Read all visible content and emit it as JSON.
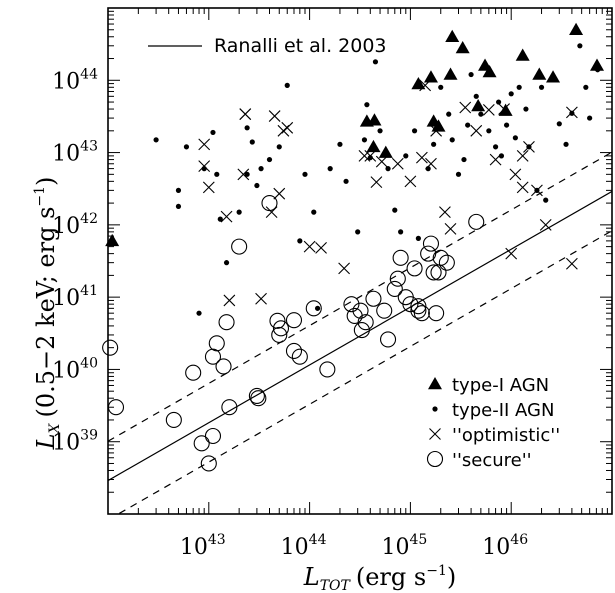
{
  "chart_data": {
    "type": "scatter",
    "x_scale": "log",
    "y_scale": "log",
    "xlabel": "L_TOT (erg s^-1)",
    "ylabel": "L_X (0.5-2 keV; erg s^-1)",
    "xlim": [
      1e+42,
      1e+47
    ],
    "ylim": [
      1e+38,
      1e+45
    ],
    "x_ticks": [
      {
        "value": 1e+43,
        "base": "10",
        "exp": "43"
      },
      {
        "value": 1e+44,
        "base": "10",
        "exp": "44"
      },
      {
        "value": 1e+45,
        "base": "10",
        "exp": "45"
      },
      {
        "value": 1e+46,
        "base": "10",
        "exp": "46"
      }
    ],
    "y_ticks": [
      {
        "value": 1e+39,
        "base": "10",
        "exp": "39"
      },
      {
        "value": 1e+40,
        "base": "10",
        "exp": "40"
      },
      {
        "value": 1e+41,
        "base": "10",
        "exp": "41"
      },
      {
        "value": 1e+42,
        "base": "10",
        "exp": "42"
      },
      {
        "value": 1e+43,
        "base": "10",
        "exp": "43"
      },
      {
        "value": 1e+44,
        "base": "10",
        "exp": "44"
      }
    ],
    "relation": {
      "name": "Ranalli et al. 2003",
      "slope": 0.8,
      "intercept_at_1e42": 2.9e+38,
      "band_factor": 3.5
    },
    "series": [
      {
        "name": "type-I AGN",
        "marker": "filled-triangle",
        "points": [
          [
            1.1e+42,
            6e+41
          ],
          [
            2.6e+45,
            4e+44
          ],
          [
            3.3e+45,
            2.8e+44
          ],
          [
            4.4e+46,
            5e+44
          ],
          [
            1.3e+46,
            2.2e+44
          ],
          [
            5.5e+45,
            1.6e+44
          ],
          [
            1.2e+45,
            8.9e+43
          ],
          [
            1.6e+45,
            1.1e+44
          ],
          [
            2.5e+45,
            1.2e+44
          ],
          [
            6.1e+45,
            1.3e+44
          ],
          [
            1.9e+46,
            1.2e+44
          ],
          [
            7.1e+46,
            1.6e+44
          ],
          [
            2.6e+46,
            1.1e+44
          ],
          [
            3.7e+44,
            2.7e+43
          ],
          [
            4.4e+44,
            2.8e+43
          ],
          [
            1.7e+45,
            2.7e+43
          ],
          [
            1.9e+45,
            2.3e+43
          ],
          [
            4.7e+45,
            4.4e+43
          ],
          [
            8.8e+45,
            3.8e+43
          ],
          [
            4.3e+44,
            1.2e+43
          ],
          [
            5.7e+44,
            1e+43
          ]
        ]
      },
      {
        "name": "type-II AGN",
        "marker": "dot",
        "points": [
          [
            3e+42,
            1.5e+43
          ],
          [
            5e+42,
            3e+42
          ],
          [
            6e+42,
            1.2e+43
          ],
          [
            5e+42,
            1.8e+42
          ],
          [
            8e+42,
            6e+40
          ],
          [
            9e+42,
            6e+42
          ],
          [
            1.1e+43,
            1.9e+43
          ],
          [
            1.2e+43,
            5e+42
          ],
          [
            1.3e+43,
            1.2e+42
          ],
          [
            1.5e+43,
            3e+41
          ],
          [
            2e+43,
            1.5e+42
          ],
          [
            2.4e+43,
            2.2e+43
          ],
          [
            2.7e+43,
            1.4e+43
          ],
          [
            3e+43,
            3.5e+42
          ],
          [
            3.3e+43,
            6e+42
          ],
          [
            4e+43,
            8e+42
          ],
          [
            5e+43,
            1.2e+43
          ],
          [
            6e+43,
            8.5e+43
          ],
          [
            8e+43,
            6e+41
          ],
          [
            9e+43,
            5e+42
          ],
          [
            1.1e+44,
            1.5e+42
          ],
          [
            1.6e+44,
            6e+42
          ],
          [
            2e+44,
            1.3e+43
          ],
          [
            2.3e+44,
            4e+42
          ],
          [
            3e+44,
            8e+41
          ],
          [
            3.5e+44,
            1.5e+43
          ],
          [
            3.7e+44,
            4.6e+43
          ],
          [
            4e+44,
            8.5e+42
          ],
          [
            4.5e+44,
            1.8e+44
          ],
          [
            5e+44,
            2e+43
          ],
          [
            6e+44,
            6e+42
          ],
          [
            7e+44,
            1.6e+42
          ],
          [
            8e+44,
            8e+41
          ],
          [
            9e+44,
            9e+42
          ],
          [
            1.1e+45,
            2e+43
          ],
          [
            1.2e+45,
            6.5e+41
          ],
          [
            1.5e+45,
            6e+42
          ],
          [
            1.7e+45,
            1.3e+43
          ],
          [
            2e+45,
            8e+43
          ],
          [
            2.4e+45,
            3.4e+43
          ],
          [
            2.6e+45,
            1.5e+43
          ],
          [
            3e+45,
            5e+42
          ],
          [
            3.4e+45,
            8e+42
          ],
          [
            3.7e+45,
            2.4e+43
          ],
          [
            4e+45,
            1.2e+44
          ],
          [
            4.5e+45,
            6e+43
          ],
          [
            5e+45,
            3.4e+43
          ],
          [
            6e+45,
            2e+43
          ],
          [
            7e+45,
            1.2e+43
          ],
          [
            7.5e+45,
            5e+43
          ],
          [
            8e+45,
            9e+42
          ],
          [
            9e+45,
            2.4e+43
          ],
          [
            1e+46,
            6.5e+43
          ],
          [
            1.1e+46,
            1.6e+43
          ],
          [
            1.2e+46,
            8e+43
          ],
          [
            1.4e+46,
            4e+43
          ],
          [
            1.5e+46,
            1.2e+43
          ],
          [
            1.8e+46,
            3e+42
          ],
          [
            2e+46,
            8e+43
          ],
          [
            2.2e+46,
            2.2e+42
          ],
          [
            3e+46,
            2.5e+43
          ],
          [
            3.5e+46,
            1.3e+43
          ],
          [
            4e+46,
            3.5e+43
          ],
          [
            4.8e+46,
            3e+44
          ],
          [
            5.5e+46,
            8e+43
          ],
          [
            6e+46,
            3e+43
          ],
          [
            7.2e+46,
            1.4e+44
          ],
          [
            1.2e+44,
            7e+40
          ],
          [
            2.4e+43,
            5e+42
          ]
        ]
      },
      {
        "name": "''optimistic''",
        "marker": "cross",
        "points": [
          [
            9e+42,
            1.3e+43
          ],
          [
            9e+42,
            6.5e+42
          ],
          [
            1e+43,
            3.3e+42
          ],
          [
            1.5e+43,
            1.3e+42
          ],
          [
            1.6e+43,
            9e+40
          ],
          [
            2.2e+43,
            5e+42
          ],
          [
            2.3e+43,
            3.4e+43
          ],
          [
            2.3e+43,
            3.4e+43
          ],
          [
            4.5e+43,
            3.2e+43
          ],
          [
            4.2e+43,
            1.5e+42
          ],
          [
            3.3e+43,
            9.5e+40
          ],
          [
            5e+43,
            2.7e+42
          ],
          [
            5.5e+43,
            2e+43
          ],
          [
            6e+43,
            2.2e+43
          ],
          [
            1e+44,
            5e+41
          ],
          [
            1.3e+44,
            4.8e+41
          ],
          [
            2.2e+44,
            2.5e+41
          ],
          [
            3.5e+44,
            9e+42
          ],
          [
            4e+44,
            9e+42
          ],
          [
            4.6e+44,
            3.9e+42
          ],
          [
            5.2e+44,
            7.5e+42
          ],
          [
            7.5e+44,
            7e+42
          ],
          [
            1e+45,
            4e+42
          ],
          [
            1.3e+45,
            8.5e+42
          ],
          [
            1.4e+45,
            8.5e+43
          ],
          [
            1.6e+45,
            7e+42
          ],
          [
            1.8e+45,
            2e+43
          ],
          [
            2.2e+45,
            1.5e+42
          ],
          [
            2.5e+45,
            8.8e+41
          ],
          [
            3.5e+45,
            4.2e+43
          ],
          [
            4.5e+45,
            2e+43
          ],
          [
            6e+45,
            3.9e+43
          ],
          [
            7e+45,
            8e+42
          ],
          [
            8.5e+45,
            4e+43
          ],
          [
            1.1e+46,
            5e+42
          ],
          [
            1.3e+46,
            3.3e+42
          ],
          [
            1.5e+46,
            1.2e+43
          ],
          [
            1.8e+46,
            3e+42
          ],
          [
            2.2e+46,
            1e+42
          ],
          [
            4e+46,
            3.6e+43
          ],
          [
            4e+46,
            2.9e+41
          ],
          [
            1.3e+46,
            9e+42
          ],
          [
            1e+46,
            4e+41
          ]
        ]
      },
      {
        "name": "''secure''",
        "marker": "open-circle",
        "points": [
          [
            1.05e+42,
            2e+40
          ],
          [
            1.2e+42,
            3e+39
          ],
          [
            4.5e+42,
            2e+39
          ],
          [
            7e+42,
            9e+39
          ],
          [
            8.5e+42,
            9.5e+38
          ],
          [
            1e+43,
            5e+38
          ],
          [
            1.1e+43,
            1.2e+39
          ],
          [
            1.1e+43,
            1.5e+40
          ],
          [
            1.2e+43,
            2.3e+40
          ],
          [
            1.4e+43,
            1.1e+40
          ],
          [
            1.5e+43,
            4.5e+40
          ],
          [
            1.6e+43,
            3e+39
          ],
          [
            3e+43,
            4.3e+39
          ],
          [
            3.1e+43,
            4e+39
          ],
          [
            4.8e+43,
            4.7e+40
          ],
          [
            5e+43,
            3e+40
          ],
          [
            5.2e+43,
            3.7e+40
          ],
          [
            7e+43,
            4.8e+40
          ],
          [
            8e+43,
            1.5e+40
          ],
          [
            1.1e+44,
            7e+40
          ],
          [
            1.5e+44,
            1e+40
          ],
          [
            2.6e+44,
            8e+40
          ],
          [
            2.8e+44,
            5.5e+40
          ],
          [
            3.2e+44,
            6.5e+40
          ],
          [
            3.3e+44,
            3.5e+40
          ],
          [
            3.6e+44,
            4.5e+40
          ],
          [
            4.3e+44,
            9.5e+40
          ],
          [
            5.5e+44,
            6.5e+40
          ],
          [
            7e+44,
            1.3e+41
          ],
          [
            7.5e+44,
            1.8e+41
          ],
          [
            8e+44,
            3.5e+41
          ],
          [
            9e+44,
            1e+41
          ],
          [
            1e+45,
            8e+40
          ],
          [
            1.1e+45,
            2.5e+41
          ],
          [
            1.2e+45,
            6.5e+40
          ],
          [
            1.3e+45,
            6e+40
          ],
          [
            1.5e+45,
            4e+41
          ],
          [
            1.6e+45,
            5.5e+41
          ],
          [
            1.7e+45,
            2.2e+41
          ],
          [
            1.8e+45,
            6e+40
          ],
          [
            1.9e+45,
            2.2e+41
          ],
          [
            2e+45,
            3.5e+41
          ],
          [
            2.3e+45,
            3e+41
          ],
          [
            4.5e+45,
            1.1e+42
          ],
          [
            2e+43,
            5e+41
          ],
          [
            4e+43,
            2e+42
          ],
          [
            7e+43,
            1.8e+40
          ],
          [
            6e+44,
            2.6e+40
          ],
          [
            1.2e+45,
            7.5e+40
          ]
        ]
      }
    ]
  },
  "legend": {
    "relation_label": "Ranalli et al. 2003",
    "items": [
      {
        "label": "type-I AGN",
        "marker": "filled-triangle"
      },
      {
        "label": "type-II AGN",
        "marker": "dot"
      },
      {
        "label": "''optimistic''",
        "marker": "cross"
      },
      {
        "label": "''secure''",
        "marker": "open-circle"
      }
    ]
  },
  "axes": {
    "x_title_prefix": "L",
    "x_title_sub": "TOT",
    "x_title_rest": "(erg s",
    "x_title_sup": "−1",
    "x_title_close": ")",
    "y_title_prefix": "L",
    "y_title_sub": "X",
    "y_title_rest": "(0.5−2 keV; erg s",
    "y_title_sup": "−1",
    "y_title_close": ")"
  }
}
